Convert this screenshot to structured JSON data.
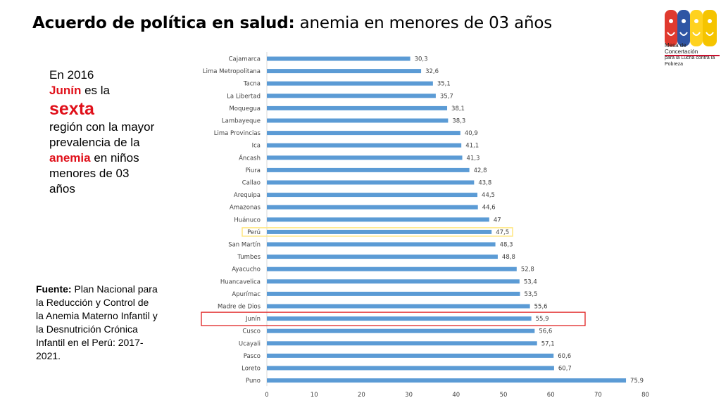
{
  "header": {
    "title_bold": "Acuerdo de política en salud:",
    "title_rest": " anemia en menores de 03 años"
  },
  "logo": {
    "line1": "Mesa de Concertación",
    "line2": "para la Lucha contra la Pobreza"
  },
  "side_note": {
    "p1": "En 2016",
    "p2_red": "Junín",
    "p2_rest": " es la",
    "p3_big": "sexta",
    "p4": "región con la mayor prevalencia de la ",
    "p4_red": "anemia",
    "p5": " en niños menores de 03 años"
  },
  "source": {
    "label": "Fuente:",
    "text": " Plan Nacional para la Reducción y Control de la Anemia Materno Infantil y la Desnutrición Crónica Infantil en el Perú: 2017-2021."
  },
  "colors": {
    "bar": "#5b9bd5",
    "highlight_peru": "#ffe680",
    "highlight_junin": "#e02020"
  },
  "chart_data": {
    "type": "bar",
    "orientation": "horizontal",
    "categories": [
      "Cajamarca",
      "Lima Metropolitana",
      "Tacna",
      "La Libertad",
      "Moquegua",
      "Lambayeque",
      "Lima Provincias",
      "Ica",
      "Áncash",
      "Piura",
      "Callao",
      "Arequipa",
      "Amazonas",
      "Huánuco",
      "Perú",
      "San Martín",
      "Tumbes",
      "Ayacucho",
      "Huancavelica",
      "Apurímac",
      "Madre de Dios",
      "Junín",
      "Cusco",
      "Ucayali",
      "Pasco",
      "Loreto",
      "Puno"
    ],
    "values": [
      30.3,
      32.6,
      35.1,
      35.7,
      38.1,
      38.3,
      40.9,
      41.1,
      41.3,
      42.8,
      43.8,
      44.5,
      44.6,
      47,
      47.5,
      48.3,
      48.8,
      52.8,
      53.4,
      53.5,
      55.6,
      55.9,
      56.6,
      57.1,
      60.6,
      60.7,
      75.9
    ],
    "value_labels": [
      "30,3",
      "32,6",
      "35,1",
      "35,7",
      "38,1",
      "38,3",
      "40,9",
      "41,1",
      "41,3",
      "42,8",
      "43,8",
      "44,5",
      "44,6",
      "47",
      "47,5",
      "48,3",
      "48,8",
      "52,8",
      "53,4",
      "53,5",
      "55,6",
      "55,9",
      "56,6",
      "57,1",
      "60,6",
      "60,7",
      "75,9"
    ],
    "xticks": [
      "0",
      "10",
      "20",
      "30",
      "40",
      "50",
      "60",
      "70",
      "80"
    ],
    "xlim": [
      0,
      80
    ],
    "highlights": {
      "Perú": "yellow-box",
      "Junín": "red-box"
    },
    "title": "",
    "xlabel": "",
    "ylabel": "",
    "grid": false,
    "legend": "none"
  }
}
